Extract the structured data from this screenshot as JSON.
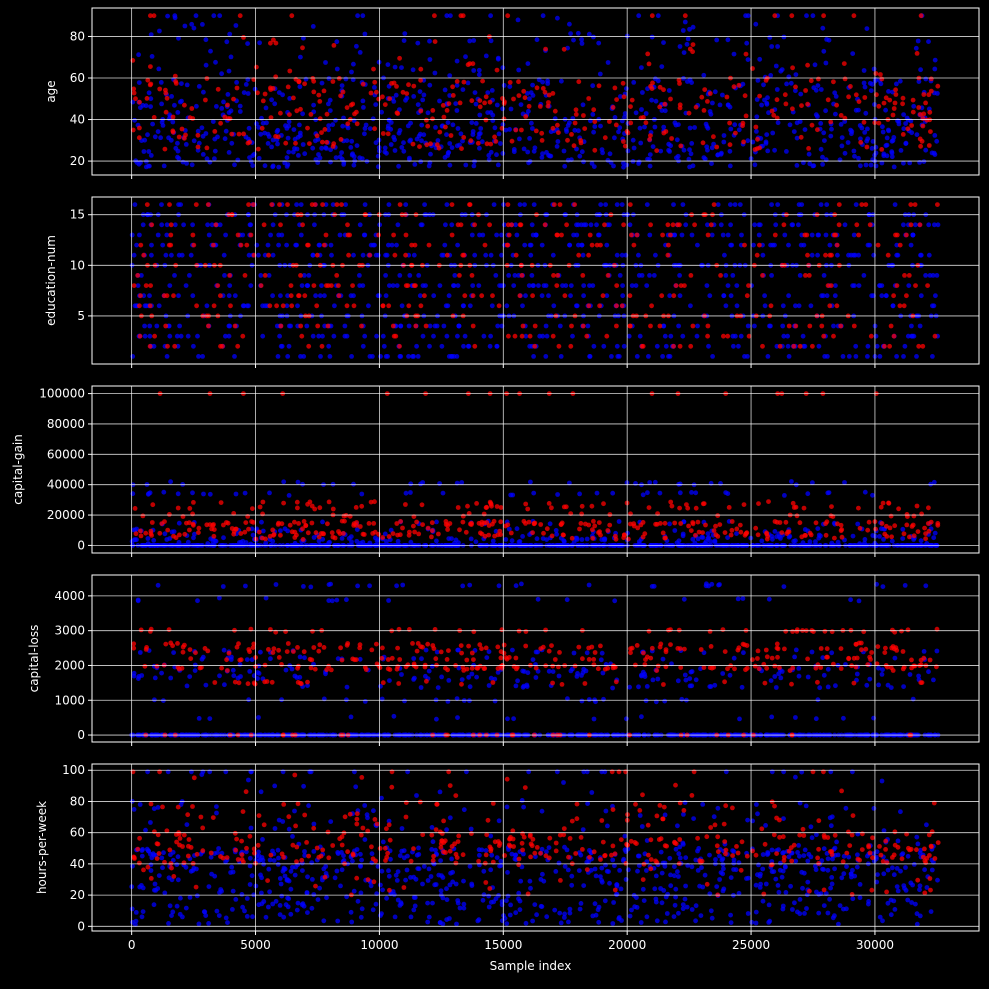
{
  "figure": {
    "background": "#000000",
    "axes_color": "#ffffff",
    "grid_color": "#ffffff",
    "class_colors": {
      "class_0": "#0000ff",
      "class_1": "#ff0000"
    }
  },
  "chart_data": [
    {
      "type": "scatter",
      "ylabel": "age",
      "xlabel": "",
      "xlim": [
        -1600,
        34200
      ],
      "ylim": [
        13.3,
        93.7
      ],
      "xticks": [
        0,
        5000,
        10000,
        15000,
        20000,
        25000,
        30000
      ],
      "yticks": [
        20,
        40,
        60,
        80
      ],
      "show_x_tick_labels": false,
      "grid": true,
      "series": [
        {
          "class": "class_0",
          "color": "#0000ff",
          "bands": [
            [
              17,
              40,
              0.55
            ],
            [
              40,
              60,
              0.3
            ],
            [
              60,
              80,
              0.12
            ],
            [
              80,
              90,
              0.03
            ]
          ],
          "outliers": [
            90
          ]
        },
        {
          "class": "class_1",
          "color": "#ff0000",
          "bands": [
            [
              25,
              40,
              0.35
            ],
            [
              40,
              60,
              0.55
            ],
            [
              60,
              80,
              0.1
            ]
          ],
          "outliers": [
            90
          ]
        }
      ]
    },
    {
      "type": "scatter",
      "ylabel": "education-num",
      "xlabel": "",
      "xlim": [
        -1600,
        34200
      ],
      "ylim": [
        0.25,
        16.75
      ],
      "xticks": [
        0,
        5000,
        10000,
        15000,
        20000,
        25000,
        30000
      ],
      "yticks": [
        5,
        10,
        15
      ],
      "show_x_tick_labels": false,
      "grid": true,
      "series": [
        {
          "class": "class_0",
          "color": "#0000ff",
          "levels": [
            1,
            2,
            3,
            4,
            5,
            6,
            7,
            8,
            9,
            10,
            11,
            12,
            13,
            14,
            15,
            16
          ]
        },
        {
          "class": "class_1",
          "color": "#ff0000",
          "levels": [
            2,
            3,
            4,
            5,
            6,
            7,
            8,
            9,
            10,
            11,
            12,
            13,
            14,
            15,
            16
          ]
        }
      ]
    },
    {
      "type": "scatter",
      "ylabel": "capital-gain",
      "xlabel": "",
      "xlim": [
        -1600,
        34200
      ],
      "ylim": [
        -5000,
        105000
      ],
      "xticks": [
        0,
        5000,
        10000,
        15000,
        20000,
        25000,
        30000
      ],
      "yticks": [
        0,
        20000,
        40000,
        60000,
        80000,
        100000
      ],
      "show_x_tick_labels": false,
      "grid": true,
      "series": [
        {
          "class": "class_0",
          "color": "#0000ff",
          "levels": [
            0,
            2000,
            3000,
            4000,
            5000,
            7000,
            10000,
            15000,
            34000,
            41000
          ]
        },
        {
          "class": "class_1",
          "color": "#ff0000",
          "levels": [
            5000,
            7000,
            7700,
            8600,
            10500,
            13500,
            14000,
            15000,
            15000,
            20000,
            25000,
            27800,
            99999
          ]
        }
      ]
    },
    {
      "type": "scatter",
      "ylabel": "capital-loss",
      "xlabel": "",
      "xlim": [
        -1600,
        34200
      ],
      "ylim": [
        -200,
        4600
      ],
      "xticks": [
        0,
        5000,
        10000,
        15000,
        20000,
        25000,
        30000
      ],
      "yticks": [
        0,
        1000,
        2000,
        3000,
        4000
      ],
      "show_x_tick_labels": false,
      "grid": true,
      "series": [
        {
          "class": "class_0",
          "color": "#0000ff",
          "levels": [
            0,
            1400,
            1600,
            1700,
            1800,
            1900,
            2000,
            2200,
            2400,
            500,
            1000,
            3900,
            4300
          ]
        },
        {
          "class": "class_1",
          "color": "#ff0000",
          "levels": [
            0,
            1500,
            1900,
            1950,
            2000,
            2200,
            2400,
            2500,
            2600,
            3000
          ]
        }
      ]
    },
    {
      "type": "scatter",
      "ylabel": "hours-per-week",
      "xlabel": "Sample index",
      "xlim": [
        -1600,
        34200
      ],
      "ylim": [
        -3,
        104
      ],
      "xticks": [
        0,
        5000,
        10000,
        15000,
        20000,
        25000,
        30000
      ],
      "yticks": [
        0,
        20,
        40,
        60,
        80,
        100
      ],
      "show_x_tick_labels": true,
      "grid": true,
      "series": [
        {
          "class": "class_0",
          "color": "#0000ff",
          "bands": [
            [
              1,
              35,
              0.45
            ],
            [
              35,
              50,
              0.4
            ],
            [
              50,
              80,
              0.13
            ],
            [
              80,
              99,
              0.02
            ]
          ],
          "outliers": [
            99
          ]
        },
        {
          "class": "class_1",
          "color": "#ff0000",
          "bands": [
            [
              20,
              40,
              0.1
            ],
            [
              40,
              60,
              0.7
            ],
            [
              60,
              80,
              0.17
            ],
            [
              80,
              99,
              0.03
            ]
          ],
          "outliers": [
            99
          ]
        }
      ]
    }
  ]
}
